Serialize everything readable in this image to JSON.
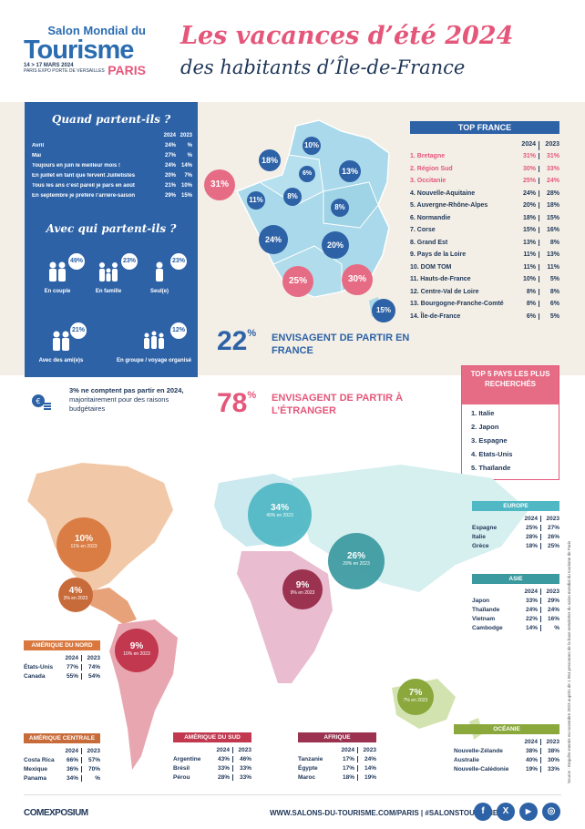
{
  "logo": {
    "line1": "Salon Mondial du",
    "line2": "Tourisme",
    "dates": "14 > 17 MARS 2024",
    "venue": "PARIS EXPO PORTE DE VERSAILLES",
    "city": "PARIS"
  },
  "title": {
    "line1": "Les vacances d’été 2024",
    "line2": "des habitants d’Île-de-France"
  },
  "when": {
    "heading": "Quand partent-ils ?",
    "col1": "2024",
    "col2": "2023",
    "rows": [
      {
        "label": "Avril",
        "v2024": "24%",
        "v2023": "%"
      },
      {
        "label": "Mai",
        "v2024": "27%",
        "v2023": "%"
      },
      {
        "label": "Toujours en juin le meilleur mois !",
        "v2024": "24%",
        "v2023": "14%"
      },
      {
        "label": "En juillet en tant que fervent Juilletistes",
        "v2024": "20%",
        "v2023": "7%"
      },
      {
        "label": "Tous les ans c’est pareil je pars en août",
        "v2024": "21%",
        "v2023": "10%"
      },
      {
        "label": "En septembre je préfère l’arrière-saison",
        "v2024": "29%",
        "v2023": "15%"
      }
    ]
  },
  "who": {
    "heading": "Avec qui partent-ils ?",
    "items": [
      {
        "label": "En couple",
        "pct": "49%"
      },
      {
        "label": "En famille",
        "pct": "23%"
      },
      {
        "label": "Seul(e)",
        "pct": "23%"
      },
      {
        "label": "Avec des ami(e)s",
        "pct": "21%"
      },
      {
        "label": "En groupe / voyage organisé",
        "pct": "12%"
      }
    ]
  },
  "note3": {
    "bold": "3% ne comptent pas partir en 2024,",
    "rest": "majoritairement pour des raisons budgétaires"
  },
  "france_bubbles": [
    "10%",
    "18%",
    "6%",
    "13%",
    "31%",
    "11%",
    "8%",
    "8%",
    "24%",
    "20%",
    "25%",
    "30%",
    "15%"
  ],
  "top_france": {
    "heading": "TOP FRANCE",
    "col1": "2024",
    "col2": "2023",
    "rows": [
      {
        "label": "1. Bretagne",
        "v2024": "31%",
        "v2023": "31%",
        "highlight": true
      },
      {
        "label": "2. Région Sud",
        "v2024": "30%",
        "v2023": "33%",
        "highlight": true
      },
      {
        "label": "3. Occitanie",
        "v2024": "25%",
        "v2023": "24%",
        "highlight": true
      },
      {
        "label": "4. Nouvelle-Aquitaine",
        "v2024": "24%",
        "v2023": "28%",
        "highlight": false
      },
      {
        "label": "5. Auvergne-Rhône-Alpes",
        "v2024": "20%",
        "v2023": "18%",
        "highlight": false
      },
      {
        "label": "6. Normandie",
        "v2024": "18%",
        "v2023": "15%",
        "highlight": false
      },
      {
        "label": "7. Corse",
        "v2024": "15%",
        "v2023": "16%",
        "highlight": false
      },
      {
        "label": "8. Grand Est",
        "v2024": "13%",
        "v2023": "8%",
        "highlight": false
      },
      {
        "label": "9. Pays de la Loire",
        "v2024": "11%",
        "v2023": "13%",
        "highlight": false
      },
      {
        "label": "10. DOM TOM",
        "v2024": "11%",
        "v2023": "11%",
        "highlight": false
      },
      {
        "label": "11. Hauts-de-France",
        "v2024": "10%",
        "v2023": "5%",
        "highlight": false
      },
      {
        "label": "12. Centre-Val de Loire",
        "v2024": "8%",
        "v2023": "8%",
        "highlight": false
      },
      {
        "label": "13. Bourgogne-Franche-Comté",
        "v2024": "8%",
        "v2023": "6%",
        "highlight": false
      },
      {
        "label": "14. Île-de-France",
        "v2024": "6%",
        "v2023": "5%",
        "highlight": false
      }
    ]
  },
  "stat_france": {
    "value": "22",
    "pct": "%",
    "text": "ENVISAGENT DE PARTIR EN FRANCE"
  },
  "stat_abroad": {
    "value": "78",
    "pct": "%",
    "text": "ENVISAGENT DE PARTIR À L’ÉTRANGER"
  },
  "top5": {
    "heading": "TOP 5 PAYS LES PLUS RECHERCHÉS",
    "items": [
      "1. Italie",
      "2. Japon",
      "3. Espagne",
      "4. Etats-Unis",
      "5. Thaïlande"
    ]
  },
  "world_bubbles": [
    {
      "pct": "34%",
      "sub": "40% en 2023",
      "color": "#4fb8c4"
    },
    {
      "pct": "26%",
      "sub": "29% en 2023",
      "color": "#3a9aa0"
    },
    {
      "pct": "10%",
      "sub": "11% en 2023",
      "color": "#d9773d"
    },
    {
      "pct": "4%",
      "sub": "3% en 2023",
      "color": "#c86b3a"
    },
    {
      "pct": "9%",
      "sub": "10% en 2023",
      "color": "#c2384f"
    },
    {
      "pct": "9%",
      "sub": "9% en 2023",
      "color": "#9a3250"
    },
    {
      "pct": "7%",
      "sub": "7% en 2023",
      "color": "#8aa83c"
    }
  ],
  "tables": {
    "europe": {
      "heading": "EUROPE",
      "color": "#4fb8c4",
      "col1": "2024",
      "col2": "2023",
      "rows": [
        {
          "label": "Espagne",
          "v2024": "25%",
          "v2023": "27%"
        },
        {
          "label": "Italie",
          "v2024": "28%",
          "v2023": "26%"
        },
        {
          "label": "Grèce",
          "v2024": "18%",
          "v2023": "25%"
        }
      ]
    },
    "asie": {
      "heading": "ASIE",
      "color": "#3a9aa0",
      "col1": "2024",
      "col2": "2023",
      "rows": [
        {
          "label": "Japon",
          "v2024": "33%",
          "v2023": "29%"
        },
        {
          "label": "Thaïlande",
          "v2024": "24%",
          "v2023": "24%"
        },
        {
          "label": "Vietnam",
          "v2024": "22%",
          "v2023": "16%"
        },
        {
          "label": "Cambodge",
          "v2024": "14%",
          "v2023": "%"
        }
      ]
    },
    "oceanie": {
      "heading": "OCÉANIE",
      "color": "#8aa83c",
      "col1": "2024",
      "col2": "2023",
      "rows": [
        {
          "label": "Nouvelle-Zélande",
          "v2024": "38%",
          "v2023": "38%"
        },
        {
          "label": "Australie",
          "v2024": "40%",
          "v2023": "30%"
        },
        {
          "label": "Nouvelle-Calédonie",
          "v2024": "19%",
          "v2023": "33%"
        }
      ]
    },
    "amerique_nord": {
      "heading": "AMÉRIQUE DU NORD",
      "color": "#d9773d",
      "col1": "2024",
      "col2": "2023",
      "rows": [
        {
          "label": "États-Unis",
          "v2024": "77%",
          "v2023": "74%"
        },
        {
          "label": "Canada",
          "v2024": "55%",
          "v2023": "54%"
        }
      ]
    },
    "amerique_centrale": {
      "heading": "AMÉRIQUE CENTRALE",
      "color": "#c86b3a",
      "col1": "2024",
      "col2": "2023",
      "rows": [
        {
          "label": "Costa Rica",
          "v2024": "66%",
          "v2023": "57%"
        },
        {
          "label": "Mexique",
          "v2024": "36%",
          "v2023": "70%"
        },
        {
          "label": "Panama",
          "v2024": "34%",
          "v2023": "%"
        }
      ]
    },
    "amerique_sud": {
      "heading": "AMÉRIQUE DU SUD",
      "color": "#c2384f",
      "col1": "2024",
      "col2": "2023",
      "rows": [
        {
          "label": "Argentine",
          "v2024": "43%",
          "v2023": "46%"
        },
        {
          "label": "Brésil",
          "v2024": "33%",
          "v2023": "33%"
        },
        {
          "label": "Pérou",
          "v2024": "28%",
          "v2023": "33%"
        }
      ]
    },
    "afrique": {
      "heading": "AFRIQUE",
      "color": "#9a3250",
      "col1": "2024",
      "col2": "2023",
      "rows": [
        {
          "label": "Tanzanie",
          "v2024": "17%",
          "v2023": "24%"
        },
        {
          "label": "Égypte",
          "v2024": "17%",
          "v2023": "14%"
        },
        {
          "label": "Maroc",
          "v2024": "18%",
          "v2023": "19%"
        }
      ]
    }
  },
  "source": "Source : Enquête menée en novembre 2023 auprès de 1 064 personnes de la base newsletter du salon mondial du tourisme de Paris",
  "footer": {
    "brand": "COMEXPOSIUM",
    "site": "WWW.SALONS-DU-TOURISME.COM/PARIS  |  #SALONSTOURISME",
    "social": [
      "f",
      "X",
      "▶",
      "◎"
    ]
  }
}
